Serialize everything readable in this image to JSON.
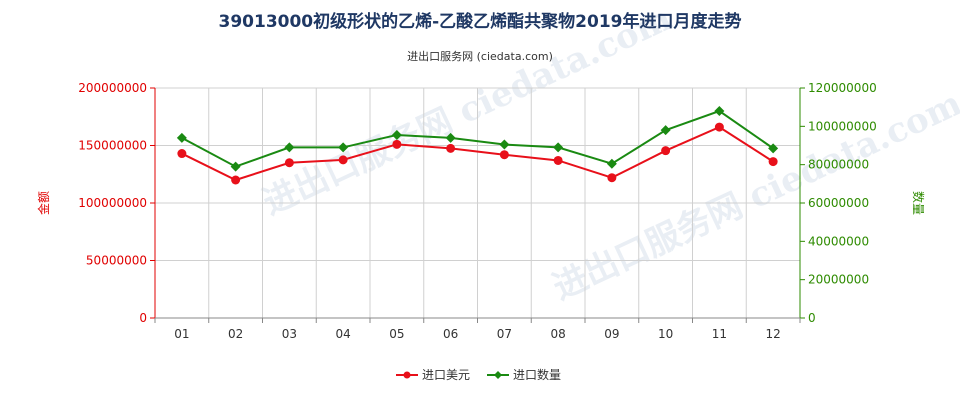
{
  "chart_data": {
    "type": "line",
    "title": "39013000初级形状的乙烯-乙酸乙烯酯共聚物2019年进口月度走势",
    "subtitle": "进出口服务网 (ciedata.com)",
    "watermark": "进出口服务网 ciedata.com",
    "categories": [
      "01",
      "02",
      "03",
      "04",
      "05",
      "06",
      "07",
      "08",
      "09",
      "10",
      "11",
      "12"
    ],
    "y_left": {
      "label": "金额",
      "ylim": [
        0,
        200000000
      ],
      "ticks": [
        "0",
        "50000000",
        "100000000",
        "150000000",
        "200000000"
      ]
    },
    "y_right": {
      "label": "数量",
      "ylim": [
        0,
        120000000
      ],
      "ticks": [
        "0",
        "20000000",
        "40000000",
        "60000000",
        "80000000",
        "100000000",
        "120000000"
      ]
    },
    "series": [
      {
        "name": "进口美元",
        "axis": "left",
        "color": "#e8101a",
        "marker": "circle",
        "values": [
          143000000,
          120000000,
          135000000,
          137500000,
          151000000,
          147500000,
          142000000,
          137000000,
          122000000,
          145500000,
          166000000,
          136000000
        ]
      },
      {
        "name": "进口数量",
        "axis": "right",
        "color": "#1a8a12",
        "marker": "diamond",
        "values": [
          94000000,
          79000000,
          89000000,
          89000000,
          95500000,
          94000000,
          90500000,
          89000000,
          80500000,
          98000000,
          108000000,
          88500000
        ]
      }
    ],
    "grid": {
      "vertical": true,
      "horizontal_left": true
    },
    "legend_position": "bottom-center"
  }
}
